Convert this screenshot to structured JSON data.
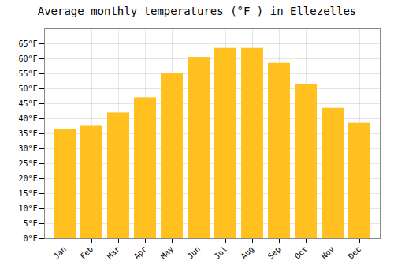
{
  "chart_data": {
    "type": "bar",
    "title": "Average monthly temperatures (°F ) in Ellezelles",
    "categories": [
      "Jan",
      "Feb",
      "Mar",
      "Apr",
      "May",
      "Jun",
      "Jul",
      "Aug",
      "Sep",
      "Oct",
      "Nov",
      "Dec"
    ],
    "values": [
      36.5,
      37.5,
      42,
      47,
      55,
      60.5,
      63.5,
      63.5,
      58.5,
      51.5,
      43.5,
      38.5
    ],
    "color": "#FFC020",
    "ylim": [
      0,
      70
    ],
    "yticks": [
      {
        "value": 0,
        "label": "0°F"
      },
      {
        "value": 5,
        "label": "5°F"
      },
      {
        "value": 10,
        "label": "10°F"
      },
      {
        "value": 15,
        "label": "15°F"
      },
      {
        "value": 20,
        "label": "20°F"
      },
      {
        "value": 25,
        "label": "25°F"
      },
      {
        "value": 30,
        "label": "30°F"
      },
      {
        "value": 35,
        "label": "35°F"
      },
      {
        "value": 40,
        "label": "40°F"
      },
      {
        "value": 45,
        "label": "45°F"
      },
      {
        "value": 50,
        "label": "50°F"
      },
      {
        "value": 55,
        "label": "55°F"
      },
      {
        "value": 60,
        "label": "60°F"
      },
      {
        "value": 65,
        "label": "65°F"
      }
    ],
    "grid": true
  }
}
